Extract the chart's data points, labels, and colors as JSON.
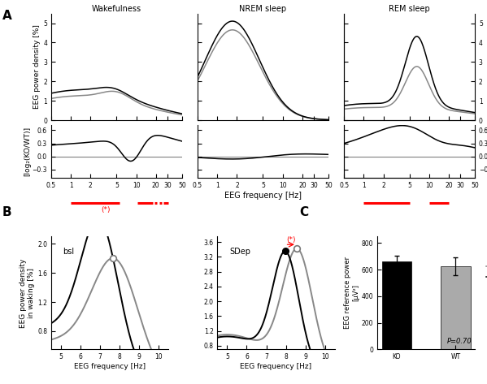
{
  "panel_titles": [
    "Wakefulness",
    "NREM sleep",
    "REM sleep"
  ],
  "ylabel_top": "EEG power density [%]",
  "ylabel_bottom": "[log₂(KO/WT)]",
  "xlabel": "EEG frequency [Hz]",
  "ylabel_B": "EEG power density\nin waking [%]",
  "xlabel_B": "EEG frequency [Hz]",
  "ylabel_C": "EEG reference power\n[μV²]",
  "bar_labels": [
    "KO",
    "WT"
  ],
  "bar_values": [
    660,
    625
  ],
  "bar_errors": [
    45,
    65
  ],
  "bar_colors": [
    "black",
    "#aaaaaa"
  ],
  "pvalue_text": "P=0.70",
  "line_color_KO": "black",
  "line_color_WT": "#888888",
  "freq_ticks": [
    0.5,
    1,
    2,
    5,
    10,
    20,
    30,
    50
  ],
  "freq_labels": [
    "0.5",
    "1",
    "2",
    "5",
    "10",
    "20",
    "30",
    "50"
  ]
}
